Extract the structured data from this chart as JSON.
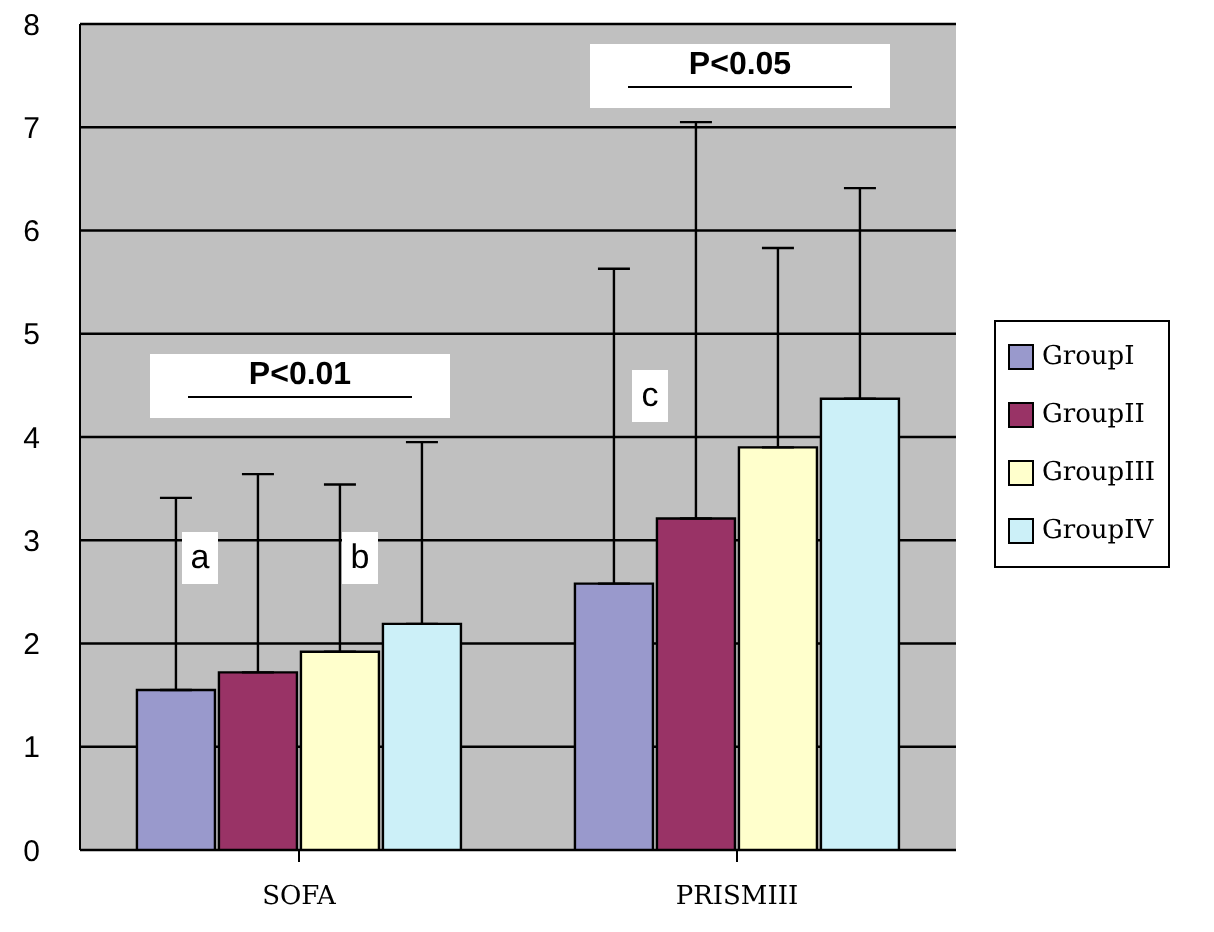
{
  "chart_data": {
    "type": "bar",
    "categories": [
      "SOFA",
      "PRISMIII"
    ],
    "series": [
      {
        "name": "GroupI",
        "color": "#9999cc",
        "values": [
          1.55,
          2.58
        ],
        "errors": [
          [
            1.55,
            3.41
          ],
          [
            2.58,
            5.63
          ]
        ]
      },
      {
        "name": "GroupII",
        "color": "#993366",
        "values": [
          1.72,
          3.21
        ],
        "errors": [
          [
            1.72,
            3.64
          ],
          [
            3.21,
            7.05
          ]
        ]
      },
      {
        "name": "GroupIII",
        "color": "#ffffcc",
        "values": [
          1.92,
          3.9
        ],
        "errors": [
          [
            1.92,
            3.54
          ],
          [
            3.9,
            5.83
          ]
        ]
      },
      {
        "name": "GroupIV",
        "color": "#ccf0f8",
        "values": [
          2.19,
          4.37
        ],
        "errors": [
          [
            2.19,
            3.95
          ],
          [
            4.37,
            6.41
          ]
        ]
      }
    ],
    "ylim": [
      0,
      8
    ],
    "yticks": [
      0,
      1,
      2,
      3,
      4,
      5,
      6,
      7,
      8
    ],
    "grid": "y",
    "legend": "right",
    "annotations": [
      "a",
      "b",
      "c",
      "P<0.01",
      "P<0.05"
    ]
  }
}
